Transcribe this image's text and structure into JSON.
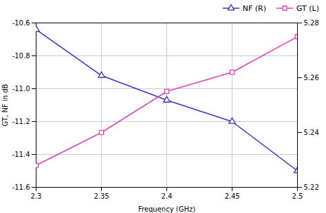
{
  "chart_data": {
    "type": "line",
    "xlabel": "Frequency (GHz)",
    "ylabel": "GT, NF in dB",
    "x": [
      2.3,
      2.35,
      2.4,
      2.45,
      2.5
    ],
    "series": [
      {
        "name": "NF (R)",
        "color": "#3333bb",
        "marker": "triangle",
        "values": [
          -10.64,
          -10.92,
          -11.07,
          -11.2,
          -11.5
        ]
      },
      {
        "name": "GT (L)",
        "color": "#dd44bb",
        "marker": "square",
        "axis": "y2",
        "values": [
          5.228,
          5.24,
          5.255,
          5.262,
          5.275
        ]
      }
    ],
    "xlim": [
      2.3,
      2.5
    ],
    "xticks": [
      2.3,
      2.35,
      2.4,
      2.45,
      2.5
    ],
    "ylim": [
      -11.6,
      -10.6
    ],
    "yticks": [
      -11.6,
      -11.4,
      -11.2,
      {
        "value": -11,
        "label": "-11.0"
      },
      -10.8,
      -10.6
    ],
    "y2lim": [
      5.22,
      5.28
    ],
    "y2ticks": [
      5.22,
      5.24,
      5.26,
      5.28
    ],
    "grid": true,
    "legend": "upper right"
  }
}
